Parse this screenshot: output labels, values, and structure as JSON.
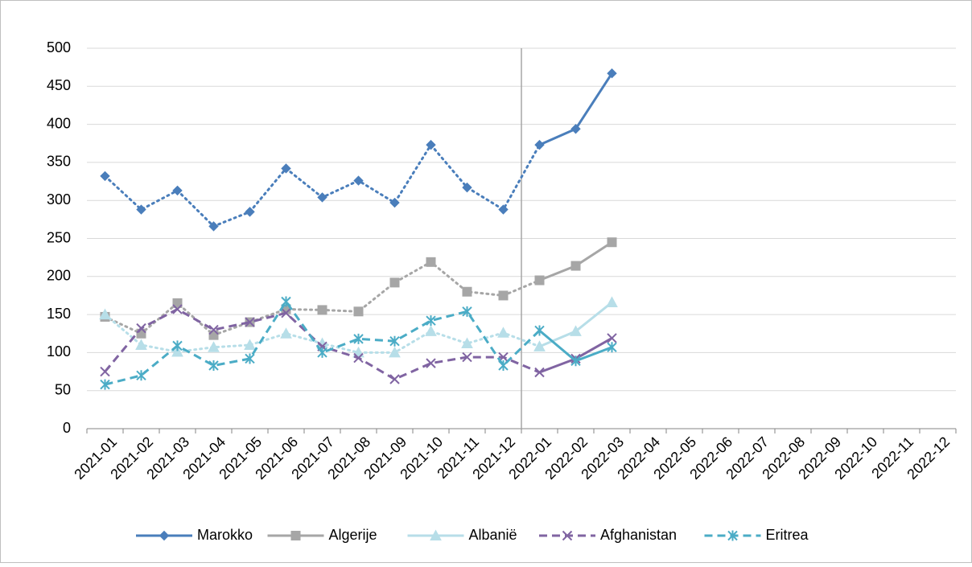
{
  "chart_data": {
    "type": "line",
    "categories": [
      "2021-01",
      "2021-02",
      "2021-03",
      "2021-04",
      "2021-05",
      "2021-06",
      "2021-07",
      "2021-08",
      "2021-09",
      "2021-10",
      "2021-11",
      "2021-12",
      "2022-01",
      "2022-02",
      "2022-03",
      "2022-04",
      "2022-05",
      "2022-06",
      "2022-07",
      "2022-08",
      "2022-09",
      "2022-10",
      "2022-11",
      "2022-12"
    ],
    "series": [
      {
        "name": "Marokko",
        "color": "#4a7ebb",
        "marker": "diamond",
        "style_before": "dotted",
        "legend_style": "solid",
        "values": [
          332,
          288,
          313,
          266,
          285,
          342,
          304,
          326,
          297,
          373,
          317,
          288,
          373,
          394,
          467,
          null,
          null,
          null,
          null,
          null,
          null,
          null,
          null,
          null
        ]
      },
      {
        "name": "Algerije",
        "color": "#a6a6a6",
        "marker": "square",
        "style_before": "dotted",
        "legend_style": "solid",
        "values": [
          147,
          125,
          165,
          123,
          140,
          157,
          156,
          154,
          192,
          219,
          180,
          175,
          195,
          214,
          245,
          null,
          null,
          null,
          null,
          null,
          null,
          null,
          null,
          null
        ]
      },
      {
        "name": "Albanië",
        "color": "#b7dee8",
        "marker": "triangle",
        "style_before": "dotted",
        "legend_style": "solid",
        "values": [
          150,
          110,
          101,
          107,
          110,
          125,
          112,
          100,
          100,
          128,
          112,
          126,
          108,
          128,
          166,
          null,
          null,
          null,
          null,
          null,
          null,
          null,
          null,
          null
        ]
      },
      {
        "name": "Afghanistan",
        "color": "#8064a2",
        "marker": "x",
        "style_before": "dashed",
        "legend_style": "dashed",
        "values": [
          75,
          132,
          157,
          130,
          140,
          152,
          108,
          93,
          65,
          86,
          94,
          94,
          74,
          92,
          119,
          null,
          null,
          null,
          null,
          null,
          null,
          null,
          null,
          null
        ]
      },
      {
        "name": "Eritrea",
        "color": "#4bacc6",
        "marker": "star",
        "style_before": "dashed",
        "legend_style": "dashed",
        "values": [
          58,
          70,
          109,
          83,
          92,
          167,
          100,
          118,
          115,
          142,
          154,
          83,
          129,
          89,
          107,
          null,
          null,
          null,
          null,
          null,
          null,
          null,
          null,
          null
        ]
      }
    ],
    "vline": "2022-01",
    "ylim": [
      0,
      500
    ],
    "yticks": [
      0,
      50,
      100,
      150,
      200,
      250,
      300,
      350,
      400,
      450,
      500
    ],
    "grid": true,
    "legend": "bottom"
  }
}
